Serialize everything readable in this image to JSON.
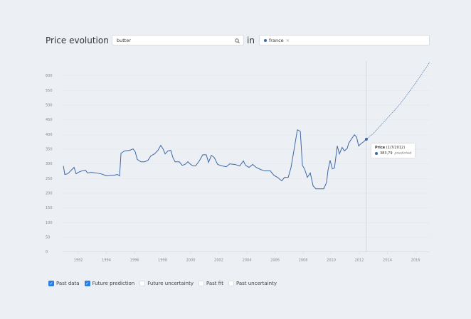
{
  "header": {
    "title": "Price evolution of",
    "search": "butter",
    "connector": "in",
    "chip": "france",
    "chip_close": "×"
  },
  "chart_data": {
    "type": "line",
    "xlim": [
      1990.9,
      2017.0
    ],
    "xticks": [
      1992,
      1994,
      1996,
      1998,
      2000,
      2002,
      2004,
      2006,
      2008,
      2010,
      2012,
      2014,
      2016
    ],
    "ylim": [
      0,
      650
    ],
    "yticks": [
      0,
      50,
      100,
      150,
      200,
      250,
      300,
      350,
      400,
      450,
      500,
      550,
      600
    ],
    "grid": true,
    "series": [
      {
        "name": "Past data",
        "checked": true,
        "color": "#3d68a6",
        "dashed": false,
        "x": [
          1990.94,
          1991.04,
          1991.24,
          1991.49,
          1991.7,
          1991.85,
          1992.0,
          1992.25,
          1992.51,
          1992.66,
          1992.91,
          1993.27,
          1993.62,
          1993.92,
          1994.03,
          1994.28,
          1994.53,
          1994.78,
          1994.94,
          1995.04,
          1995.29,
          1995.65,
          1995.9,
          1996.05,
          1996.2,
          1996.46,
          1996.71,
          1996.96,
          1997.16,
          1997.42,
          1997.67,
          1997.87,
          1998.03,
          1998.18,
          1998.38,
          1998.58,
          1998.73,
          1998.89,
          1999.19,
          1999.39,
          1999.59,
          1999.8,
          1999.95,
          2000.15,
          2000.35,
          2000.61,
          2000.86,
          2001.11,
          2001.27,
          2001.47,
          2001.67,
          2001.92,
          2002.23,
          2002.53,
          2002.78,
          2003.14,
          2003.49,
          2003.75,
          2003.9,
          2004.15,
          2004.41,
          2004.66,
          2004.96,
          2005.27,
          2005.67,
          2005.92,
          2006.18,
          2006.48,
          2006.68,
          2006.94,
          2007.14,
          2007.34,
          2007.59,
          2007.8,
          2007.95,
          2008.1,
          2008.3,
          2008.51,
          2008.71,
          2008.91,
          2009.22,
          2009.47,
          2009.67,
          2009.77,
          2009.92,
          2010.08,
          2010.23,
          2010.43,
          2010.58,
          2010.78,
          2010.94,
          2011.14,
          2011.24,
          2011.44,
          2011.65,
          2011.8,
          2011.95,
          2012.1,
          2012.3,
          2012.5
        ],
        "values": [
          293,
          264,
          266,
          278,
          288,
          266,
          271,
          276,
          278,
          269,
          271,
          269,
          266,
          261,
          259,
          261,
          261,
          264,
          259,
          336,
          344,
          346,
          351,
          341,
          315,
          307,
          307,
          312,
          327,
          334,
          346,
          363,
          351,
          334,
          344,
          346,
          322,
          307,
          307,
          295,
          298,
          307,
          300,
          293,
          293,
          310,
          331,
          331,
          305,
          329,
          322,
          298,
          293,
          290,
          300,
          298,
          293,
          310,
          295,
          288,
          298,
          288,
          281,
          276,
          276,
          261,
          254,
          242,
          254,
          254,
          288,
          344,
          416,
          411,
          295,
          283,
          254,
          269,
          225,
          215,
          215,
          215,
          237,
          278,
          312,
          283,
          286,
          361,
          334,
          356,
          344,
          353,
          370,
          385,
          399,
          392,
          361,
          368,
          375,
          383.79
        ]
      },
      {
        "name": "Future prediction",
        "checked": true,
        "color": "#3d68a6",
        "dashed": true,
        "x": [
          2012.5,
          2013.0,
          2013.5,
          2014.0,
          2014.5,
          2015.0,
          2015.5,
          2016.0,
          2016.5,
          2017.0
        ],
        "values": [
          383.79,
          404,
          430,
          456,
          482,
          510,
          542,
          575,
          610,
          646
        ]
      }
    ],
    "other_options": [
      {
        "name": "Future uncertainty",
        "checked": false
      },
      {
        "name": "Past fit",
        "checked": false
      },
      {
        "name": "Past uncertainty",
        "checked": false
      }
    ],
    "tooltip": {
      "title": "Price",
      "date": "(1/7/2012)",
      "value": "383,79",
      "note": "predicted"
    }
  }
}
